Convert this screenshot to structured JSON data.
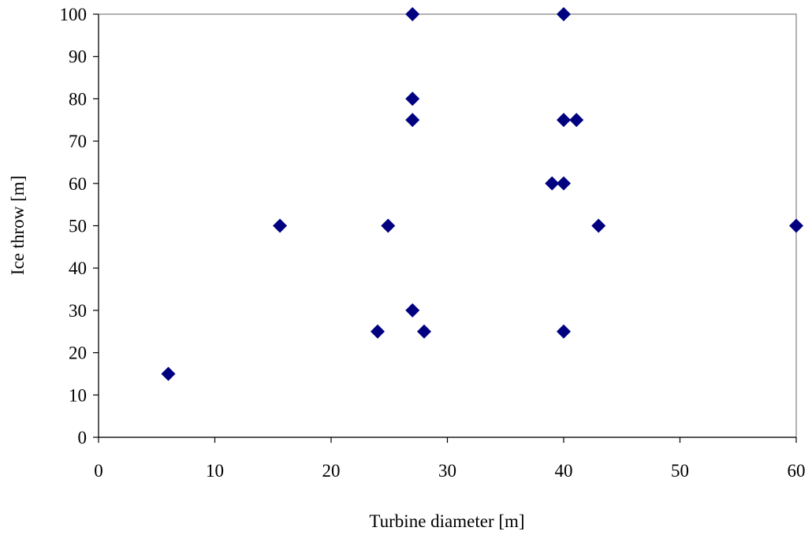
{
  "chart_data": {
    "type": "scatter",
    "title": "",
    "xlabel": "Turbine diameter [m]",
    "ylabel": "Ice throw [m]",
    "xlim": [
      0,
      60
    ],
    "ylim": [
      0,
      100
    ],
    "xticks": [
      0,
      10,
      20,
      30,
      40,
      50,
      60
    ],
    "yticks": [
      0,
      10,
      20,
      30,
      40,
      50,
      60,
      70,
      80,
      90,
      100
    ],
    "grid": false,
    "legend": "none",
    "marker": "diamond",
    "marker_color": "#000080",
    "series": [
      {
        "points": [
          {
            "x": 6,
            "y": 15
          },
          {
            "x": 15.6,
            "y": 50
          },
          {
            "x": 24,
            "y": 25
          },
          {
            "x": 24.9,
            "y": 50
          },
          {
            "x": 27,
            "y": 100
          },
          {
            "x": 27,
            "y": 80
          },
          {
            "x": 27,
            "y": 75
          },
          {
            "x": 27,
            "y": 30
          },
          {
            "x": 28,
            "y": 25
          },
          {
            "x": 39,
            "y": 60
          },
          {
            "x": 40,
            "y": 100
          },
          {
            "x": 40,
            "y": 75
          },
          {
            "x": 40,
            "y": 60
          },
          {
            "x": 40,
            "y": 25
          },
          {
            "x": 41.1,
            "y": 75
          },
          {
            "x": 43,
            "y": 50
          },
          {
            "x": 60,
            "y": 50
          }
        ]
      }
    ]
  }
}
